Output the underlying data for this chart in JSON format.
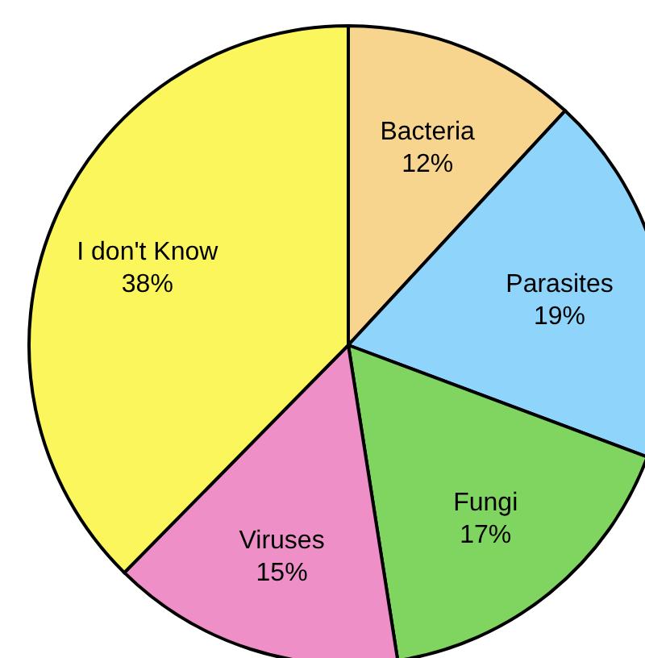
{
  "chart_data": {
    "type": "pie",
    "categories": [
      "Bacteria",
      "Parasites",
      "Fungi",
      "Viruses",
      "I don't Know"
    ],
    "values": [
      12,
      19,
      17,
      15,
      38
    ],
    "value_labels": [
      "12%",
      "19%",
      "17%",
      "15%",
      "38%"
    ],
    "colors": [
      "#f7d58f",
      "#8fd5fb",
      "#80d560",
      "#ee8fc7",
      "#fbf65b"
    ]
  }
}
